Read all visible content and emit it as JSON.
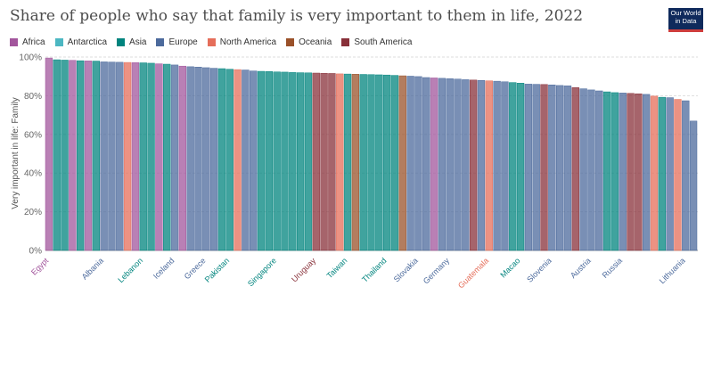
{
  "header": {
    "title": "Share of people who say that family is very important to them in life, 2022",
    "logo_line1": "Our World",
    "logo_line2": "in Data"
  },
  "legend": [
    {
      "name": "Africa",
      "color": "#a2559c"
    },
    {
      "name": "Antarctica",
      "color": "#4cb7c2"
    },
    {
      "name": "Asia",
      "color": "#00847e"
    },
    {
      "name": "Europe",
      "color": "#4c6a9c"
    },
    {
      "name": "North America",
      "color": "#e56e5a"
    },
    {
      "name": "Oceania",
      "color": "#9a5129"
    },
    {
      "name": "South America",
      "color": "#883039"
    }
  ],
  "chart_data": {
    "type": "bar",
    "title": "Share of people who say that family is very important to them in life, 2022",
    "ylabel": "Very important in life: Family",
    "ylim": [
      0,
      100
    ],
    "yticks": [
      "0%",
      "20%",
      "40%",
      "60%",
      "80%",
      "100%"
    ],
    "grid": true,
    "legend_position": "top-left",
    "region_colors": {
      "Africa": "#a2559c",
      "Asia": "#00847e",
      "Europe": "#4c6a9c",
      "North America": "#e56e5a",
      "Oceania": "#9a5129",
      "South America": "#883039"
    },
    "bars": [
      {
        "label": "Egypt",
        "value": 99.5,
        "region": "Africa"
      },
      {
        "label": "",
        "value": 98.6,
        "region": "Asia"
      },
      {
        "label": "",
        "value": 98.4,
        "region": "Asia"
      },
      {
        "label": "",
        "value": 98.3,
        "region": "Africa"
      },
      {
        "label": "",
        "value": 98.1,
        "region": "Asia"
      },
      {
        "label": "",
        "value": 98.0,
        "region": "Africa"
      },
      {
        "label": "",
        "value": 97.9,
        "region": "Asia"
      },
      {
        "label": "Albania",
        "value": 97.5,
        "region": "Europe"
      },
      {
        "label": "",
        "value": 97.4,
        "region": "Europe"
      },
      {
        "label": "",
        "value": 97.3,
        "region": "Europe"
      },
      {
        "label": "",
        "value": 97.2,
        "region": "North America"
      },
      {
        "label": "",
        "value": 97.1,
        "region": "Africa"
      },
      {
        "label": "Lebanon",
        "value": 97.0,
        "region": "Asia"
      },
      {
        "label": "",
        "value": 96.8,
        "region": "Asia"
      },
      {
        "label": "",
        "value": 96.5,
        "region": "Africa"
      },
      {
        "label": "",
        "value": 96.3,
        "region": "Asia"
      },
      {
        "label": "Iceland",
        "value": 95.9,
        "region": "Europe"
      },
      {
        "label": "",
        "value": 95.3,
        "region": "Africa"
      },
      {
        "label": "",
        "value": 95.0,
        "region": "Europe"
      },
      {
        "label": "",
        "value": 94.8,
        "region": "Europe"
      },
      {
        "label": "Greece",
        "value": 94.5,
        "region": "Europe"
      },
      {
        "label": "",
        "value": 94.2,
        "region": "Europe"
      },
      {
        "label": "",
        "value": 94.0,
        "region": "Asia"
      },
      {
        "label": "Pakistan",
        "value": 93.7,
        "region": "Asia"
      },
      {
        "label": "",
        "value": 93.5,
        "region": "North America"
      },
      {
        "label": "",
        "value": 93.3,
        "region": "Europe"
      },
      {
        "label": "",
        "value": 92.8,
        "region": "Europe"
      },
      {
        "label": "",
        "value": 92.6,
        "region": "Asia"
      },
      {
        "label": "",
        "value": 92.5,
        "region": "Asia"
      },
      {
        "label": "Singapore",
        "value": 92.3,
        "region": "Asia"
      },
      {
        "label": "",
        "value": 92.2,
        "region": "Asia"
      },
      {
        "label": "",
        "value": 92.0,
        "region": "Asia"
      },
      {
        "label": "",
        "value": 91.9,
        "region": "Asia"
      },
      {
        "label": "",
        "value": 91.8,
        "region": "Asia"
      },
      {
        "label": "Uruguay",
        "value": 91.7,
        "region": "South America"
      },
      {
        "label": "",
        "value": 91.6,
        "region": "South America"
      },
      {
        "label": "",
        "value": 91.5,
        "region": "South America"
      },
      {
        "label": "",
        "value": 91.3,
        "region": "North America"
      },
      {
        "label": "Taiwan",
        "value": 91.2,
        "region": "Asia"
      },
      {
        "label": "",
        "value": 91.1,
        "region": "Oceania"
      },
      {
        "label": "",
        "value": 91.0,
        "region": "Asia"
      },
      {
        "label": "",
        "value": 90.9,
        "region": "Asia"
      },
      {
        "label": "",
        "value": 90.8,
        "region": "Asia"
      },
      {
        "label": "Thailand",
        "value": 90.7,
        "region": "Asia"
      },
      {
        "label": "",
        "value": 90.5,
        "region": "Asia"
      },
      {
        "label": "",
        "value": 90.3,
        "region": "Oceania"
      },
      {
        "label": "",
        "value": 90.1,
        "region": "Europe"
      },
      {
        "label": "Slovakia",
        "value": 89.9,
        "region": "Europe"
      },
      {
        "label": "",
        "value": 89.4,
        "region": "Europe"
      },
      {
        "label": "",
        "value": 89.2,
        "region": "Africa"
      },
      {
        "label": "",
        "value": 89.0,
        "region": "Europe"
      },
      {
        "label": "Germany",
        "value": 88.8,
        "region": "Europe"
      },
      {
        "label": "",
        "value": 88.6,
        "region": "Europe"
      },
      {
        "label": "",
        "value": 88.3,
        "region": "Europe"
      },
      {
        "label": "",
        "value": 88.1,
        "region": "South America"
      },
      {
        "label": "",
        "value": 87.9,
        "region": "Europe"
      },
      {
        "label": "Guatemala",
        "value": 87.7,
        "region": "North America"
      },
      {
        "label": "",
        "value": 87.5,
        "region": "Europe"
      },
      {
        "label": "",
        "value": 87.2,
        "region": "Europe"
      },
      {
        "label": "",
        "value": 86.8,
        "region": "Asia"
      },
      {
        "label": "Macao",
        "value": 86.5,
        "region": "Asia"
      },
      {
        "label": "",
        "value": 86.0,
        "region": "Europe"
      },
      {
        "label": "",
        "value": 85.9,
        "region": "Europe"
      },
      {
        "label": "",
        "value": 85.8,
        "region": "South America"
      },
      {
        "label": "Slovenia",
        "value": 85.6,
        "region": "Europe"
      },
      {
        "label": "",
        "value": 85.3,
        "region": "Europe"
      },
      {
        "label": "",
        "value": 85.1,
        "region": "Europe"
      },
      {
        "label": "",
        "value": 84.2,
        "region": "South America"
      },
      {
        "label": "",
        "value": 83.6,
        "region": "Europe"
      },
      {
        "label": "Austria",
        "value": 83.0,
        "region": "Europe"
      },
      {
        "label": "",
        "value": 82.5,
        "region": "Europe"
      },
      {
        "label": "",
        "value": 82.0,
        "region": "Asia"
      },
      {
        "label": "",
        "value": 81.6,
        "region": "Asia"
      },
      {
        "label": "Russia",
        "value": 81.4,
        "region": "Europe"
      },
      {
        "label": "",
        "value": 81.2,
        "region": "South America"
      },
      {
        "label": "",
        "value": 81.0,
        "region": "South America"
      },
      {
        "label": "",
        "value": 80.7,
        "region": "Europe"
      },
      {
        "label": "",
        "value": 79.8,
        "region": "North America"
      },
      {
        "label": "",
        "value": 79.2,
        "region": "Asia"
      },
      {
        "label": "",
        "value": 79.0,
        "region": "Europe"
      },
      {
        "label": "",
        "value": 78.1,
        "region": "North America"
      },
      {
        "label": "Lithuania",
        "value": 77.4,
        "region": "Europe"
      },
      {
        "label": "",
        "value": 66.9,
        "region": "Europe"
      }
    ]
  }
}
